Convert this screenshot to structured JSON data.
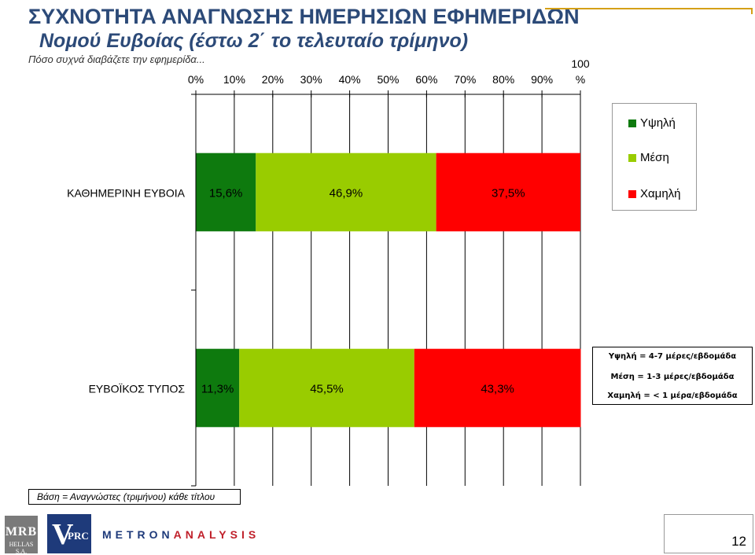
{
  "header": {
    "title": "ΣΥΧΝΟΤΗΤΑ ΑΝΑΓΝΩΣΗΣ ΗΜΕΡΗΣΙΩΝ ΕΦΗΜΕΡΙΔΩΝ",
    "subtitle": "Νομού Ευβοίας (έστω 2΄ το τελευταίο τρίμηνο)",
    "question": "Πόσο συχνά διαβάζετε την εφημερίδα..."
  },
  "chart_data": {
    "type": "bar",
    "orientation": "horizontal",
    "stacked": "100%",
    "xlim": [
      0,
      100
    ],
    "x_tick_labels": [
      "0%",
      "10%",
      "20%",
      "30%",
      "40%",
      "50%",
      "60%",
      "70%",
      "80%",
      "90%",
      "100 %"
    ],
    "categories": [
      "ΚΑΘΗΜΕΡΙΝΗ ΕΥΒΟΙΑ",
      "ΕΥΒΟΪΚΟΣ ΤΥΠΟΣ"
    ],
    "series": [
      {
        "name": "Υψηλή",
        "color": "#0e7a0e",
        "values": [
          15.6,
          11.3
        ],
        "labels": [
          "15,6%",
          "11,3%"
        ]
      },
      {
        "name": "Μέση",
        "color": "#99cc00",
        "values": [
          46.9,
          45.5
        ],
        "labels": [
          "46,9%",
          "45,5%"
        ]
      },
      {
        "name": "Χαμηλή",
        "color": "#ff0000",
        "values": [
          37.5,
          43.3
        ],
        "labels": [
          "37,5%",
          "43,3%"
        ]
      }
    ],
    "grid": true,
    "legend_position": "right"
  },
  "definitions": [
    "Υψηλή = 4-7 μέρες/εβδομάδα",
    "Μέση = 1-3 μέρες/εβδομάδα",
    "Χαμηλή = < 1 μέρα/εβδομάδα"
  ],
  "footer": {
    "base_note": "Βάση = Αναγνώστες (τριμήνου) κάθε τίτλου",
    "logo_mrb": "MRB",
    "logo_mrb_sub": "HELLAS S.A.",
    "logo_vprc_v": "V",
    "logo_vprc_rest": "PRC",
    "logo_metron_a": "METRON",
    "logo_metron_b": "ANALYSIS",
    "page_number": "12"
  }
}
